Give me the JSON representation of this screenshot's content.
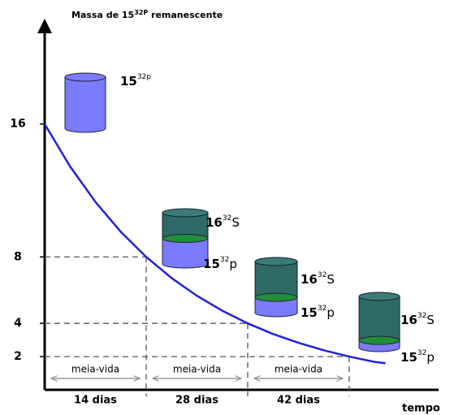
{
  "chart_data": {
    "type": "line",
    "y_label": [
      "Massa de 15",
      "32P",
      " remanescente"
    ],
    "x_label": "tempo",
    "x": [
      0,
      3.5,
      7,
      10.5,
      14,
      17.5,
      21,
      24.5,
      28,
      31.5,
      35,
      38.5,
      42,
      45.5,
      47
    ],
    "values": [
      16,
      13.45,
      11.31,
      9.51,
      8,
      6.73,
      5.66,
      4.76,
      4,
      3.36,
      2.83,
      2.38,
      2,
      1.68,
      1.6
    ],
    "color": "#2222dd",
    "xlim": [
      0,
      55
    ],
    "ylim": [
      0,
      22
    ],
    "yticks": [
      2,
      4,
      8,
      16
    ],
    "half_lives": [
      {
        "start": 0,
        "end": 14,
        "level": 8,
        "label": "meia-vida",
        "time": "14 dias"
      },
      {
        "start": 14,
        "end": 28,
        "level": 4,
        "label": "meia-vida",
        "time": "28 dias"
      },
      {
        "start": 28,
        "end": 42,
        "level": 2,
        "label": "meia-vida",
        "time": "42 dias"
      }
    ],
    "samples": [
      {
        "P": [
          "15",
          "32p"
        ]
      },
      {
        "S": [
          "16",
          "32",
          "S"
        ],
        "P": [
          "15",
          "32",
          "p"
        ]
      },
      {
        "S": [
          "16",
          "32",
          "S"
        ],
        "P": [
          "15",
          "32",
          "p"
        ]
      },
      {
        "S": [
          "16",
          "32",
          "S"
        ],
        "P": [
          "15",
          "32",
          "p"
        ]
      }
    ]
  }
}
